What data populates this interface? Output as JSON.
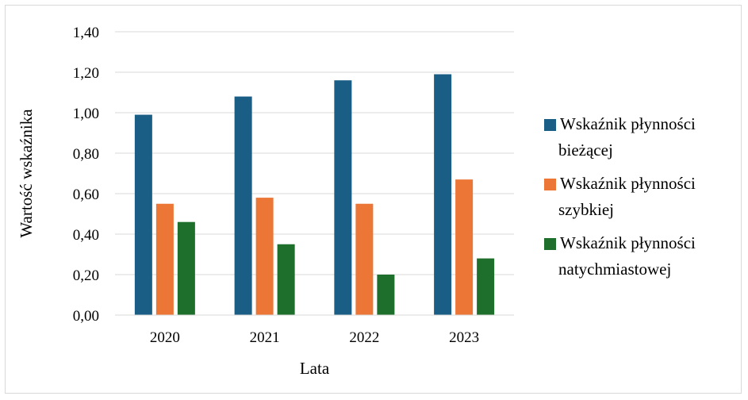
{
  "chart_data": {
    "type": "bar",
    "title": "",
    "xlabel": "Lata",
    "ylabel": "Wartość wskaźnika",
    "categories": [
      "2020",
      "2021",
      "2022",
      "2023"
    ],
    "ylim": [
      0,
      1.4
    ],
    "yticks": [
      "0,00",
      "0,20",
      "0,40",
      "0,60",
      "0,80",
      "1,00",
      "1,20",
      "1,40"
    ],
    "grid": true,
    "legend_position": "right",
    "series": [
      {
        "name": "Wskaźnik płynności bieżącej",
        "legend_lines": [
          "Wskaźnik płynności",
          "bieżącej"
        ],
        "color": "#1b5e85",
        "values": [
          0.99,
          1.08,
          1.16,
          1.19
        ]
      },
      {
        "name": "Wskaźnik płynności szybkiej",
        "legend_lines": [
          "Wskaźnik płynności",
          "szybkiej"
        ],
        "color": "#ec7636",
        "values": [
          0.55,
          0.58,
          0.55,
          0.67
        ]
      },
      {
        "name": "Wskaźnik płynności natychmiastowej",
        "legend_lines": [
          "Wskaźnik płynności",
          "natychmiastowej"
        ],
        "color": "#1f6f2c",
        "values": [
          0.46,
          0.35,
          0.2,
          0.28
        ]
      }
    ]
  }
}
